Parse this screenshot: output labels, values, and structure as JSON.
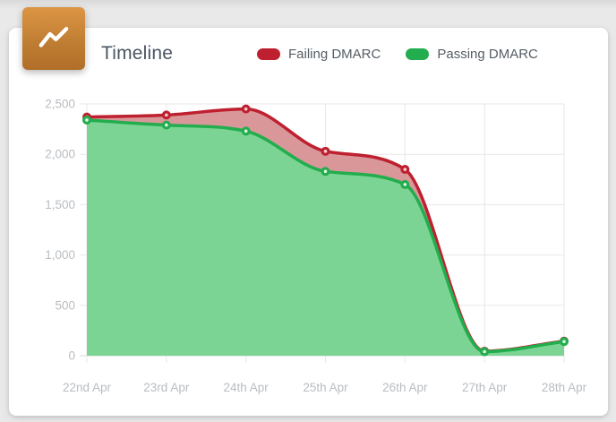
{
  "card": {
    "title": "Timeline"
  },
  "header_icon": {
    "name": "timeline-chart-icon",
    "glyph": "zigzag-line",
    "color_top": "#dd9544",
    "color_bottom": "#b06e28"
  },
  "legend": {
    "items": [
      {
        "label": "Failing DMARC",
        "color": "#bf202f"
      },
      {
        "label": "Passing DMARC",
        "color": "#22ad4e"
      }
    ]
  },
  "chart_data": {
    "type": "area",
    "title": "Timeline",
    "categories": [
      "22nd Apr",
      "23rd Apr",
      "24th Apr",
      "25th Apr",
      "26th Apr",
      "27th Apr",
      "28th Apr"
    ],
    "series": [
      {
        "name": "Failing DMARC",
        "color": "#bf202f",
        "fill_color": "#d9979a",
        "marker_center": "#efd0d2",
        "values": [
          2370,
          2390,
          2450,
          2030,
          1850,
          45,
          145
        ]
      },
      {
        "name": "Passing DMARC",
        "color": "#22ad4e",
        "fill_color": "#7cd494",
        "marker_center": "#e2f5e8",
        "values": [
          2340,
          2290,
          2230,
          1830,
          1700,
          40,
          140
        ]
      }
    ],
    "xlabel": "",
    "ylabel": "",
    "ylim": [
      0,
      2500
    ],
    "y_ticks": [
      0,
      500,
      1000,
      1500,
      2000,
      2500
    ],
    "grid": true,
    "legend_position": "top",
    "curve": "monotone"
  },
  "axis_style": {
    "label_color": "#b9bdc1",
    "grid_color": "#e7e7e7",
    "axis_color": "#d9d9d9"
  }
}
